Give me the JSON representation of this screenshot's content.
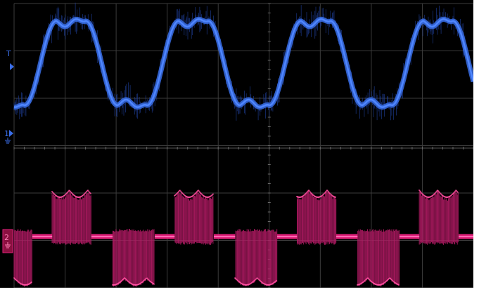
{
  "screen": {
    "grid_divisions_x": 9,
    "grid_divisions_y": 6,
    "background_color": "#000000",
    "grid_color": "#3c3c3c"
  },
  "channels": [
    {
      "name": "channel-1",
      "color": "#3a6ee8",
      "waveform": "distorted-trapezoid-with-noise",
      "marker_label": "1",
      "marker_icon": "ground-marker-icon"
    },
    {
      "name": "channel-2",
      "color": "#e0207a",
      "waveform": "three-level-modulated-burst",
      "marker_label": "2",
      "marker_icon": "ground-marker-icon"
    }
  ],
  "markers": {
    "trigger_label": "T"
  }
}
